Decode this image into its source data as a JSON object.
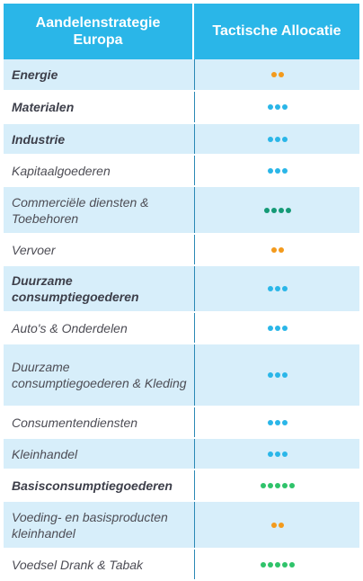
{
  "header": {
    "col1": "Aandelenstrategie Europa",
    "col2": "Tactische Allocatie"
  },
  "colors": {
    "orange": "#f39a1c",
    "blue": "#2ab6e8",
    "darkgreen": "#159a76",
    "green": "#2fc36a"
  },
  "rows": [
    {
      "label": "Energie",
      "bold": true,
      "dots": 2,
      "color": "orange"
    },
    {
      "label": "Materialen",
      "bold": true,
      "dots": 3,
      "color": "blue"
    },
    {
      "label": "Industrie",
      "bold": true,
      "dots": 3,
      "color": "blue"
    },
    {
      "label": "Kapitaalgoederen",
      "bold": false,
      "dots": 3,
      "color": "blue"
    },
    {
      "label": "Commerciële diensten & Toebehoren",
      "bold": false,
      "dots": 4,
      "color": "darkgreen"
    },
    {
      "label": "Vervoer",
      "bold": false,
      "dots": 2,
      "color": "orange"
    },
    {
      "label": "Duurzame consumptiegoederen",
      "bold": true,
      "dots": 3,
      "color": "blue"
    },
    {
      "label": "Auto's & Onderdelen",
      "bold": false,
      "dots": 3,
      "color": "blue"
    },
    {
      "label": "Duurzame consumptiegoederen & Kleding",
      "bold": false,
      "dots": 3,
      "color": "blue"
    },
    {
      "label": "Consumentendiensten",
      "bold": false,
      "dots": 3,
      "color": "blue"
    },
    {
      "label": "Kleinhandel",
      "bold": false,
      "dots": 3,
      "color": "blue"
    },
    {
      "label": "Basisconsumptiegoederen",
      "bold": true,
      "dots": 5,
      "color": "green"
    },
    {
      "label": "Voeding- en basisproducten kleinhandel",
      "bold": false,
      "dots": 2,
      "color": "orange"
    },
    {
      "label": "Voedsel Drank & Tabak",
      "bold": false,
      "dots": 5,
      "color": "green"
    }
  ]
}
